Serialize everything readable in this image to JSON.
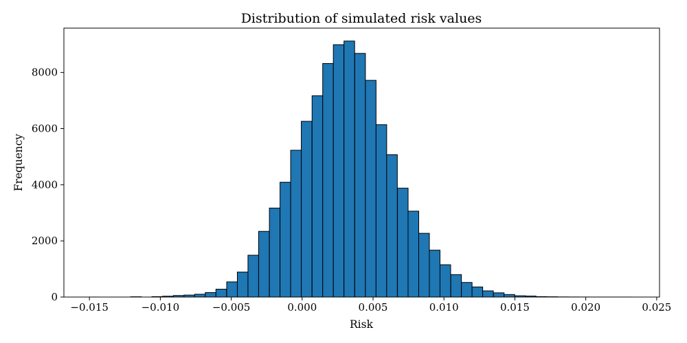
{
  "chart_data": {
    "type": "bar",
    "subtype": "histogram",
    "title": "Distribution of simulated risk values",
    "xlabel": "Risk",
    "ylabel": "Frequency",
    "xlim": [
      -0.0168,
      0.0252
    ],
    "ylim": [
      0,
      9580
    ],
    "bin_width": 0.000752,
    "bin_starts": [
      -0.0151,
      -0.01435,
      -0.0136,
      -0.01285,
      -0.01209,
      -0.01134,
      -0.01059,
      -0.00984,
      -0.00908,
      -0.00833,
      -0.00758,
      -0.00683,
      -0.00608,
      -0.00532,
      -0.00457,
      -0.00382,
      -0.00307,
      -0.00231,
      -0.00156,
      -0.00081,
      -6e-05,
      0.0007,
      0.00145,
      0.0022,
      0.00295,
      0.00371,
      0.00446,
      0.00521,
      0.00596,
      0.00672,
      0.00747,
      0.00822,
      0.00897,
      0.00972,
      0.01048,
      0.01123,
      0.01198,
      0.01273,
      0.01349,
      0.01424,
      0.01499,
      0.01574,
      0.0165,
      0.01725,
      0.018,
      0.01875,
      0.01951,
      0.02026,
      0.02101,
      0.02176,
      0.02252
    ],
    "values": [
      1,
      0,
      0,
      0,
      10,
      0,
      15,
      30,
      55,
      70,
      100,
      160,
      280,
      540,
      890,
      1490,
      2340,
      3170,
      4090,
      5230,
      6260,
      7170,
      8320,
      8990,
      9120,
      8680,
      7720,
      6140,
      5070,
      3880,
      3060,
      2270,
      1670,
      1150,
      800,
      520,
      360,
      220,
      150,
      90,
      45,
      35,
      15,
      10,
      5,
      3,
      2,
      1,
      1,
      1,
      1
    ],
    "bar_color": "#1f77b4",
    "edge_color": "#000000",
    "grid": false,
    "x_ticks": [
      {
        "value": -0.015,
        "label": "−0.015"
      },
      {
        "value": -0.01,
        "label": "−0.010"
      },
      {
        "value": -0.005,
        "label": "−0.005"
      },
      {
        "value": 0.0,
        "label": "0.000"
      },
      {
        "value": 0.005,
        "label": "0.005"
      },
      {
        "value": 0.01,
        "label": "0.010"
      },
      {
        "value": 0.015,
        "label": "0.015"
      },
      {
        "value": 0.02,
        "label": "0.020"
      },
      {
        "value": 0.025,
        "label": "0.025"
      }
    ],
    "y_ticks": [
      {
        "value": 0,
        "label": "0"
      },
      {
        "value": 2000,
        "label": "2000"
      },
      {
        "value": 4000,
        "label": "4000"
      },
      {
        "value": 6000,
        "label": "6000"
      },
      {
        "value": 8000,
        "label": "8000"
      }
    ]
  }
}
